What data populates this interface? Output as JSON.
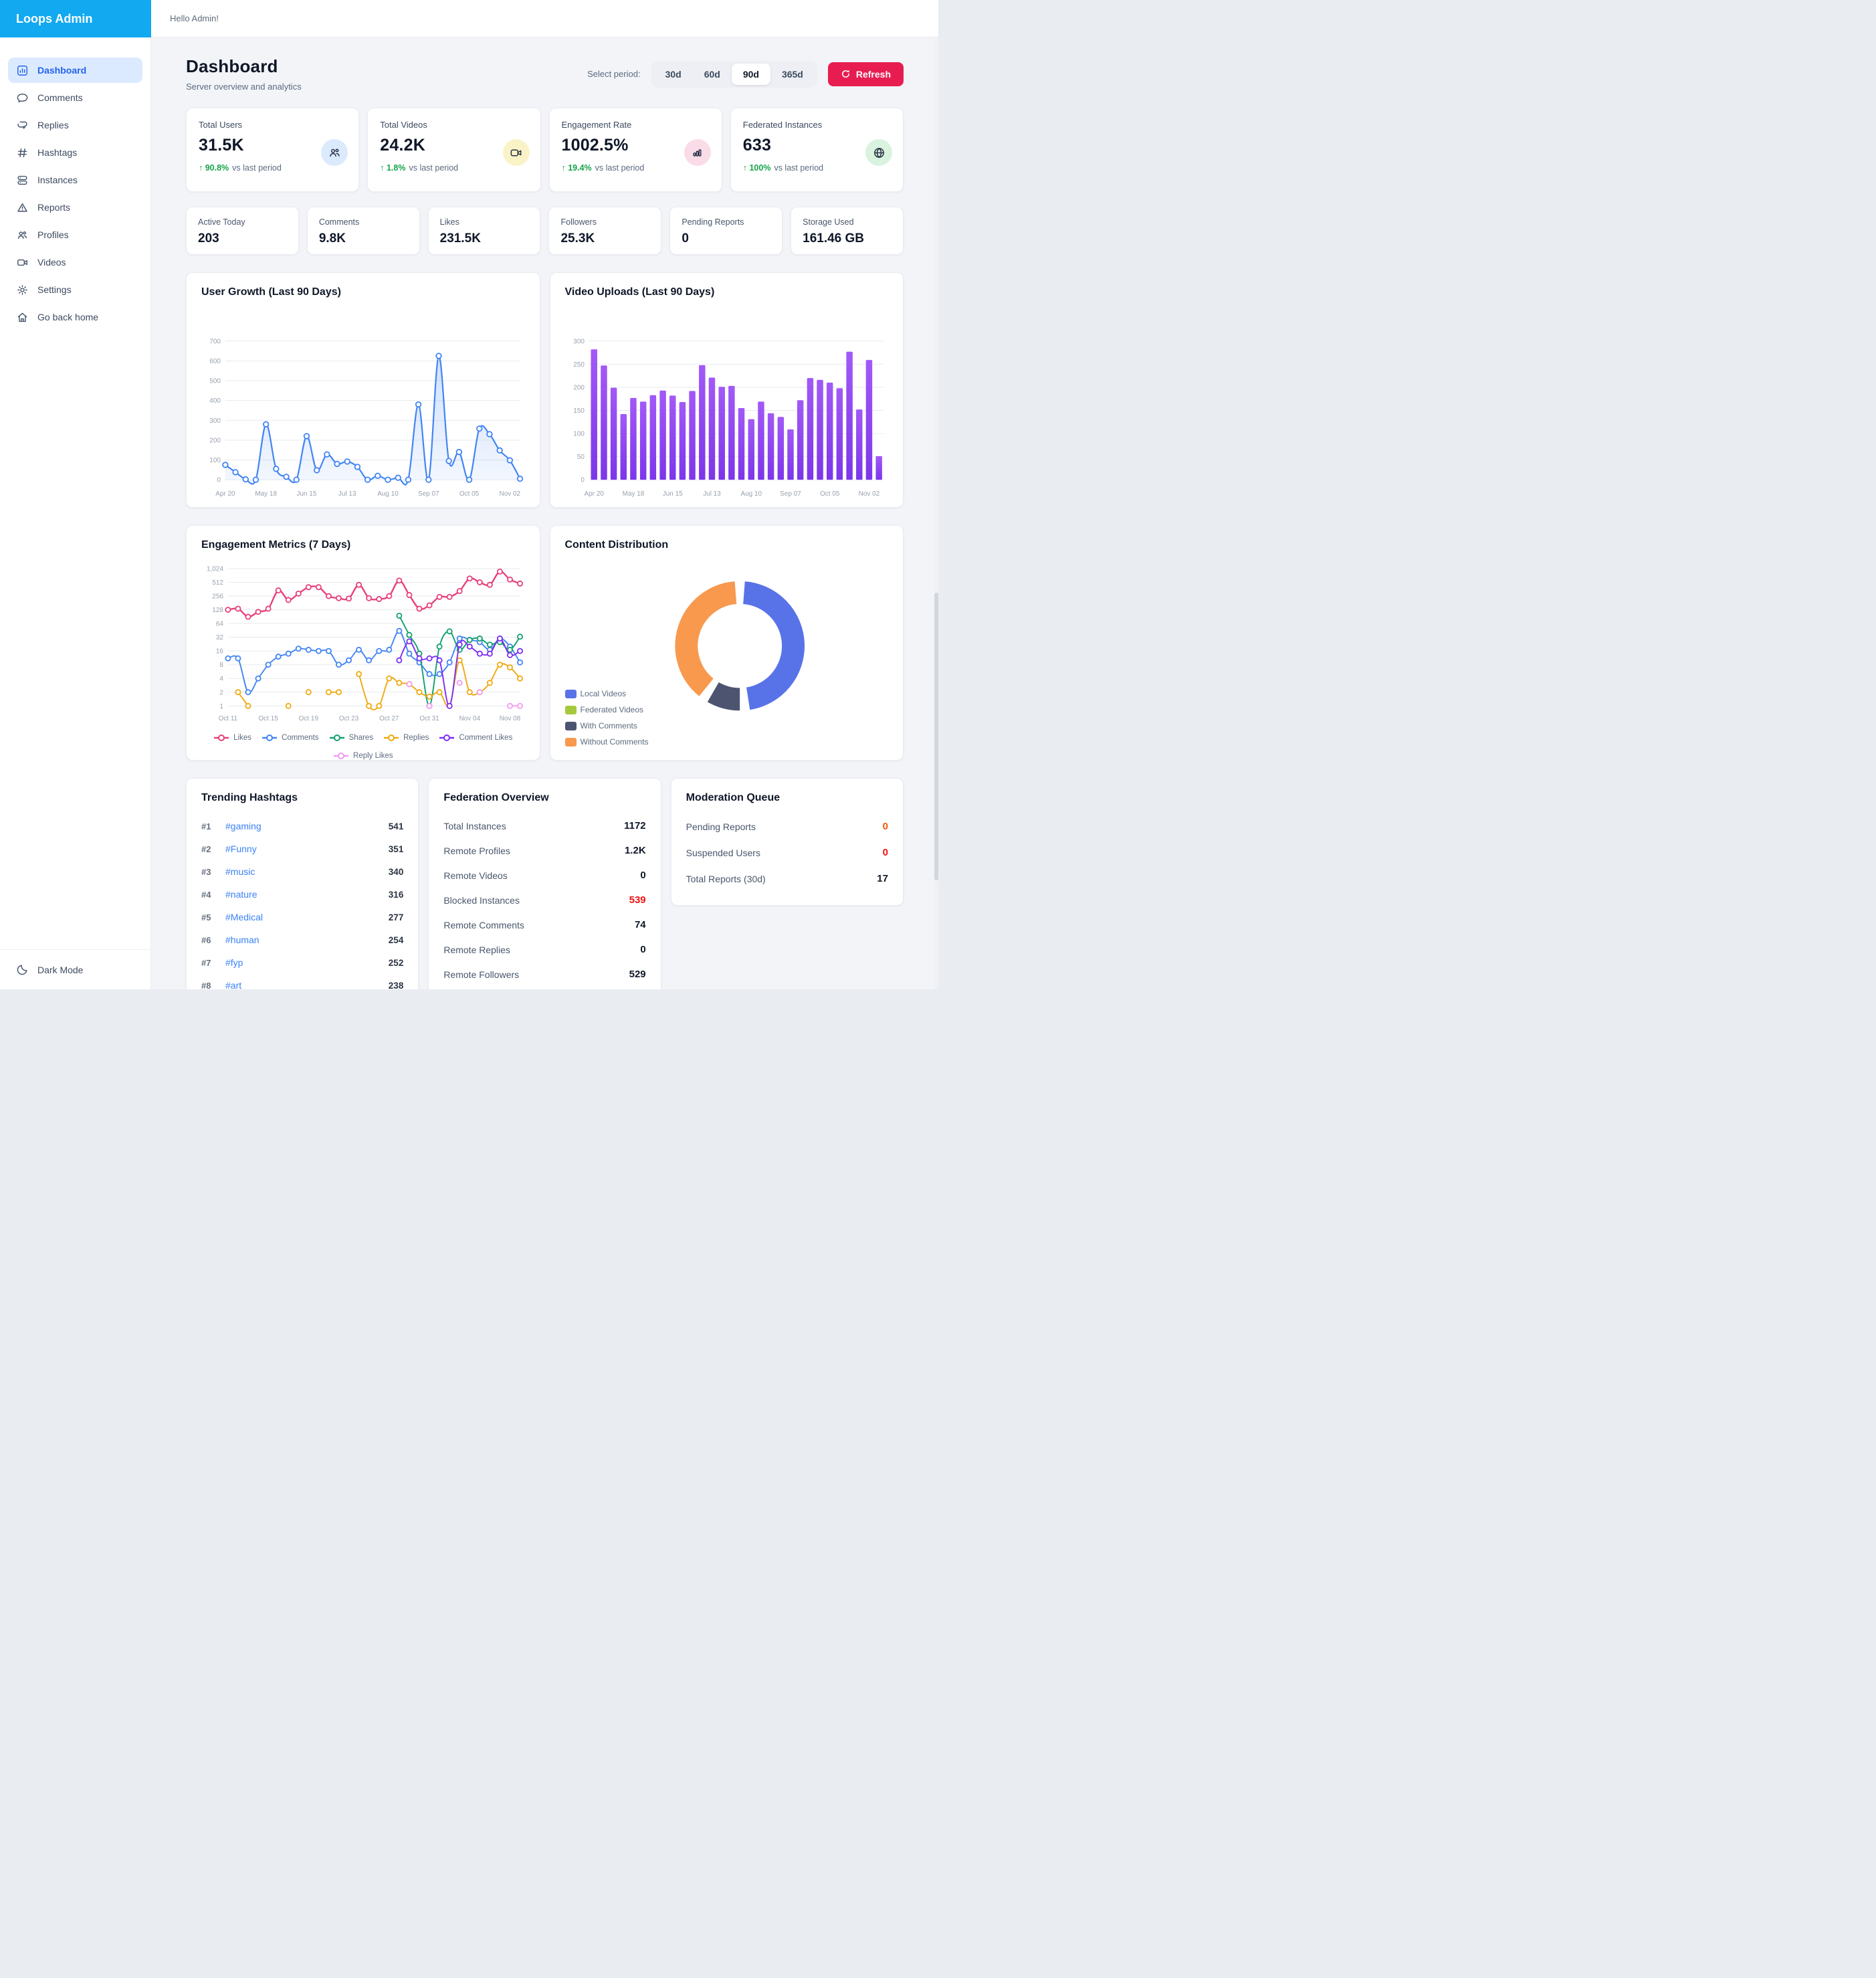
{
  "app": {
    "brand": "Loops Admin",
    "greeting": "Hello Admin!"
  },
  "sidebar": {
    "items": [
      {
        "label": "Dashboard",
        "icon": "dashboard-icon",
        "active": true
      },
      {
        "label": "Comments",
        "icon": "comment-icon"
      },
      {
        "label": "Replies",
        "icon": "replies-icon"
      },
      {
        "label": "Hashtags",
        "icon": "hashtag-icon"
      },
      {
        "label": "Instances",
        "icon": "server-icon"
      },
      {
        "label": "Reports",
        "icon": "warning-icon"
      },
      {
        "label": "Profiles",
        "icon": "users-icon"
      },
      {
        "label": "Videos",
        "icon": "video-camera-icon"
      },
      {
        "label": "Settings",
        "icon": "gear-icon"
      },
      {
        "label": "Go back home",
        "icon": "home-icon"
      }
    ],
    "footer": {
      "label": "Dark Mode",
      "icon": "moon-icon"
    }
  },
  "header": {
    "title": "Dashboard",
    "subtitle": "Server overview and analytics",
    "period_label": "Select period:",
    "periods": [
      "30d",
      "60d",
      "90d",
      "365d"
    ],
    "active_period": "90d",
    "refresh_label": "Refresh",
    "refresh_color": "#E71D51"
  },
  "stats_primary": [
    {
      "label": "Total Users",
      "value": "31.5K",
      "delta": "↑ 90.8%",
      "delta_suffix": "vs last period",
      "icon": "users-icon",
      "icon_bg": "#DCEAFD"
    },
    {
      "label": "Total Videos",
      "value": "24.2K",
      "delta": "↑ 1.8%",
      "delta_suffix": "vs last period",
      "icon": "video-camera-icon",
      "icon_bg": "#FBF3C8"
    },
    {
      "label": "Engagement Rate",
      "value": "1002.5%",
      "delta": "↑ 19.4%",
      "delta_suffix": "vs last period",
      "icon": "bar-chart-icon",
      "icon_bg": "#FADCE8"
    },
    {
      "label": "Federated Instances",
      "value": "633",
      "delta": "↑ 100%",
      "delta_suffix": "vs last period",
      "icon": "globe-icon",
      "icon_bg": "#D9F3DF"
    }
  ],
  "stats_secondary": [
    {
      "label": "Active Today",
      "value": "203"
    },
    {
      "label": "Comments",
      "value": "9.8K"
    },
    {
      "label": "Likes",
      "value": "231.5K"
    },
    {
      "label": "Followers",
      "value": "25.3K"
    },
    {
      "label": "Pending Reports",
      "value": "0"
    },
    {
      "label": "Storage Used",
      "value": "161.46 GB"
    }
  ],
  "chart_data": [
    {
      "id": "user_growth",
      "type": "area",
      "title": "User Growth (Last 90 Days)",
      "color": "#4285F4",
      "ylim": [
        0,
        700
      ],
      "yticks": [
        0,
        100,
        200,
        300,
        400,
        500,
        600,
        700
      ],
      "x_tick_labels": [
        "Apr 20",
        "May 18",
        "Jun 15",
        "Jul 13",
        "Aug 10",
        "Sep 07",
        "Oct 05",
        "Nov 02"
      ],
      "label_every": 4,
      "values": [
        75,
        38,
        2,
        0,
        280,
        55,
        15,
        0,
        220,
        48,
        128,
        80,
        92,
        65,
        0,
        20,
        0,
        10,
        0,
        380,
        0,
        625,
        95,
        140,
        0,
        258,
        230,
        148,
        98,
        5
      ]
    },
    {
      "id": "video_uploads",
      "type": "bar",
      "title": "Video Uploads (Last 90 Days)",
      "color_top": "#A259F7",
      "color_bottom": "#7C36EA",
      "ylim": [
        0,
        300
      ],
      "yticks": [
        0,
        50,
        100,
        150,
        200,
        250,
        300
      ],
      "x_tick_labels": [
        "Apr 20",
        "May 18",
        "Jun 15",
        "Jul 13",
        "Aug 10",
        "Sep 07",
        "Oct 05",
        "Nov 02"
      ],
      "label_every": 4,
      "values": [
        282,
        247,
        199,
        142,
        177,
        169,
        183,
        193,
        182,
        168,
        192,
        248,
        221,
        201,
        203,
        155,
        131,
        169,
        144,
        136,
        109,
        172,
        220,
        216,
        210,
        198,
        277,
        152,
        259,
        51
      ]
    },
    {
      "id": "engagement",
      "type": "line",
      "title": "Engagement Metrics (7 Days)",
      "y_scale": "log2",
      "ylim": [
        1,
        1024
      ],
      "ytick_labels": [
        "1",
        "2",
        "4",
        "8",
        "16",
        "32",
        "64",
        "128",
        "256",
        "512",
        "1,024"
      ],
      "x_tick_labels": [
        "Oct 11",
        "Oct 15",
        "Oct 19",
        "Oct 23",
        "Oct 27",
        "Oct 31",
        "Nov 04",
        "Nov 08"
      ],
      "label_every": 4,
      "series": [
        {
          "name": "Likes",
          "color": "#E8407C",
          "values": [
            128,
            135,
            90,
            115,
            135,
            340,
            210,
            290,
            400,
            400,
            255,
            230,
            225,
            450,
            230,
            220,
            255,
            560,
            270,
            135,
            160,
            245,
            245,
            330,
            620,
            512,
            450,
            880,
            590,
            480
          ]
        },
        {
          "name": "Comments",
          "color": "#4285F4",
          "values": [
            11,
            11,
            2,
            4,
            8,
            12,
            14,
            18,
            17,
            16,
            16,
            8,
            10,
            17,
            10,
            16,
            17,
            44,
            14,
            9,
            5,
            5,
            9,
            30,
            28,
            25,
            17,
            30,
            20,
            9
          ]
        },
        {
          "name": "Shares",
          "color": "#13A06F",
          "values": [
            null,
            null,
            null,
            null,
            null,
            null,
            null,
            null,
            null,
            null,
            null,
            null,
            null,
            null,
            null,
            null,
            null,
            95,
            36,
            14,
            1,
            20,
            43,
            17,
            28,
            30,
            22,
            25,
            17,
            33
          ]
        },
        {
          "name": "Replies",
          "color": "#EFA90F",
          "values": [
            null,
            2,
            1,
            null,
            null,
            null,
            1,
            null,
            2,
            null,
            2,
            2,
            null,
            5,
            1,
            1,
            4,
            3.2,
            3,
            2,
            1.6,
            2,
            1,
            10,
            2,
            2,
            3.2,
            8,
            7,
            4
          ]
        },
        {
          "name": "Comment Likes",
          "color": "#7C2EF5",
          "values": [
            null,
            null,
            null,
            null,
            null,
            null,
            null,
            null,
            null,
            null,
            null,
            null,
            null,
            null,
            null,
            null,
            null,
            10,
            26,
            11,
            11,
            10,
            1,
            22,
            20,
            14,
            14,
            30,
            13,
            16
          ]
        },
        {
          "name": "Reply Likes",
          "color": "#F29BEE",
          "values": [
            null,
            null,
            null,
            null,
            null,
            null,
            null,
            null,
            null,
            null,
            null,
            null,
            null,
            null,
            null,
            null,
            null,
            null,
            3,
            null,
            1,
            null,
            null,
            3.2,
            null,
            2,
            null,
            null,
            1,
            1
          ]
        }
      ]
    },
    {
      "id": "content_distribution",
      "type": "donut",
      "title": "Content Distribution",
      "segments": [
        {
          "label": "Local Videos",
          "color": "#5873E8",
          "value": 50
        },
        {
          "label": "Federated Videos",
          "color": "#A6C93C",
          "value": 0
        },
        {
          "label": "With Comments",
          "color": "#4D5470",
          "value": 9
        },
        {
          "label": "Without Comments",
          "color": "#F8994E",
          "value": 41
        }
      ]
    }
  ],
  "trending": {
    "title": "Trending Hashtags",
    "items": [
      {
        "rank": "#1",
        "tag": "#gaming",
        "count": "541"
      },
      {
        "rank": "#2",
        "tag": "#Funny",
        "count": "351"
      },
      {
        "rank": "#3",
        "tag": "#music",
        "count": "340"
      },
      {
        "rank": "#4",
        "tag": "#nature",
        "count": "316"
      },
      {
        "rank": "#5",
        "tag": "#Medical",
        "count": "277"
      },
      {
        "rank": "#6",
        "tag": "#human",
        "count": "254"
      },
      {
        "rank": "#7",
        "tag": "#fyp",
        "count": "252"
      },
      {
        "rank": "#8",
        "tag": "#art",
        "count": "238"
      }
    ]
  },
  "federation": {
    "title": "Federation Overview",
    "rows": [
      {
        "label": "Total Instances",
        "value": "1172"
      },
      {
        "label": "Remote Profiles",
        "value": "1.2K"
      },
      {
        "label": "Remote Videos",
        "value": "0"
      },
      {
        "label": "Blocked Instances",
        "value": "539"
      },
      {
        "label": "Remote Comments",
        "value": "74"
      },
      {
        "label": "Remote Replies",
        "value": "0"
      },
      {
        "label": "Remote Followers",
        "value": "529"
      }
    ]
  },
  "moderation": {
    "title": "Moderation Queue",
    "rows": [
      {
        "label": "Pending Reports",
        "value": "0"
      },
      {
        "label": "Suspended Users",
        "value": "0"
      },
      {
        "label": "Total Reports (30d)",
        "value": "17"
      }
    ]
  }
}
